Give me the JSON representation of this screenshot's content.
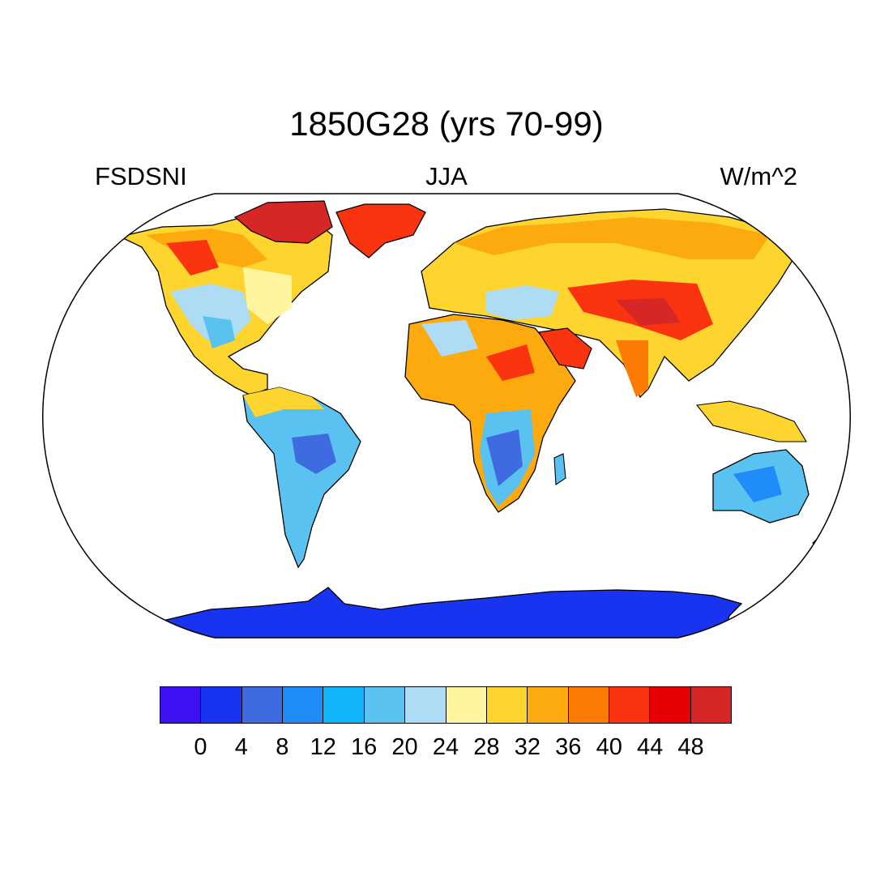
{
  "title": "1850G28 (yrs 70-99)",
  "left_string": "FSDSNI",
  "center_string": "JJA",
  "right_string": "W/m^2",
  "colorbar": {
    "colors": [
      "#3e10f4",
      "#1934f0",
      "#3e6be0",
      "#1f8cf7",
      "#10b4f9",
      "#5ac2f1",
      "#aedcf4",
      "#fff59e",
      "#fdd52e",
      "#fcaa0d",
      "#fc7b05",
      "#fb3410",
      "#e60005",
      "#d62626"
    ],
    "labels": [
      "0",
      "4",
      "8",
      "12",
      "16",
      "20",
      "24",
      "28",
      "32",
      "36",
      "40",
      "44",
      "48"
    ]
  },
  "map": {
    "projection": "Robinson",
    "ocean_color": "#ffffff",
    "coastline_color": "#000000"
  }
}
